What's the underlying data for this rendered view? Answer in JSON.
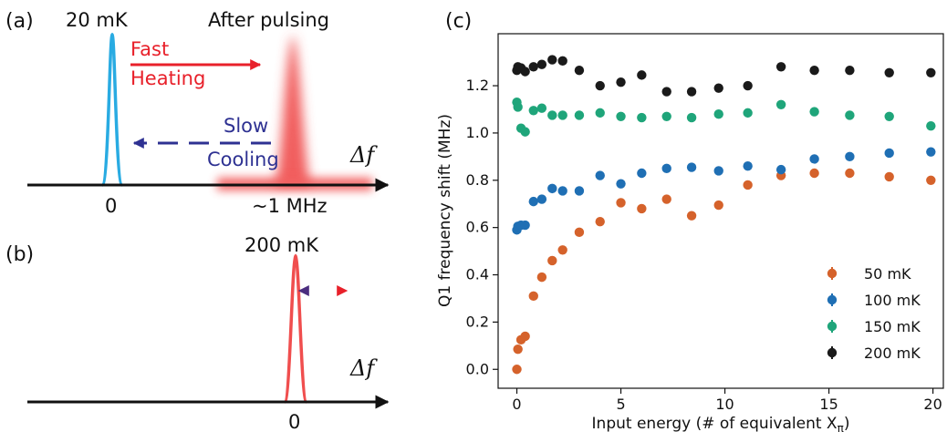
{
  "panels": {
    "a": {
      "label": "(a)",
      "cold_peak_label": "20 mK",
      "hot_peak_label": "After pulsing",
      "heating_label_1": "Fast",
      "heating_label_2": "Heating",
      "cooling_label_1": "Slow",
      "cooling_label_2": "Cooling",
      "axis_symbol": "Δf",
      "tick_zero": "0",
      "tick_hot": "~1 MHz",
      "colors": {
        "cold_peak": "#29abe2",
        "hot_peak": "#f04e4e",
        "heating_arrow": "#e8202a",
        "cooling_arrow": "#2e3192"
      }
    },
    "b": {
      "label": "(b)",
      "peak_label": "200 mK",
      "axis_symbol": "Δf",
      "tick_zero": "0",
      "colors": {
        "peak": "#f04e4e",
        "arrow_start": "#4b2d7f",
        "arrow_end": "#e8202a"
      }
    },
    "c": {
      "label": "(c)"
    }
  },
  "chart_data": {
    "type": "scatter",
    "xlabel": "Input energy (# of equivalent X",
    "xlabel_sub": "π",
    "xlabel_close": ")",
    "ylabel": "Q1 frequency shift (MHz)",
    "xlim": [
      -0.9,
      20.5
    ],
    "ylim": [
      -0.08,
      1.42
    ],
    "xticks": [
      0,
      5,
      10,
      15,
      20
    ],
    "yticks": [
      0.0,
      0.2,
      0.4,
      0.6,
      0.8,
      1.0,
      1.2
    ],
    "ytick_labels": [
      "0.0",
      "0.2",
      "0.4",
      "0.6",
      "0.8",
      "1.0",
      "1.2"
    ],
    "grid": false,
    "legend_position": "lower-right",
    "series": [
      {
        "name": "50 mK",
        "color": "#d5622b",
        "points": [
          [
            0.0,
            0.0
          ],
          [
            0.05,
            0.085
          ],
          [
            0.2,
            0.125
          ],
          [
            0.4,
            0.14
          ],
          [
            0.8,
            0.31
          ],
          [
            1.2,
            0.39
          ],
          [
            1.7,
            0.46
          ],
          [
            2.2,
            0.505
          ],
          [
            3.0,
            0.58
          ],
          [
            4.0,
            0.625
          ],
          [
            5.0,
            0.705
          ],
          [
            6.0,
            0.68
          ],
          [
            7.2,
            0.72
          ],
          [
            8.4,
            0.65
          ],
          [
            9.7,
            0.695
          ],
          [
            11.1,
            0.78
          ],
          [
            12.7,
            0.82
          ],
          [
            14.3,
            0.83
          ],
          [
            16.0,
            0.83
          ],
          [
            17.9,
            0.815
          ],
          [
            19.9,
            0.8
          ]
        ]
      },
      {
        "name": "100 mK",
        "color": "#1f6fb4",
        "points": [
          [
            0.0,
            0.59
          ],
          [
            0.05,
            0.605
          ],
          [
            0.2,
            0.61
          ],
          [
            0.4,
            0.61
          ],
          [
            0.8,
            0.71
          ],
          [
            1.2,
            0.72
          ],
          [
            1.7,
            0.765
          ],
          [
            2.2,
            0.755
          ],
          [
            3.0,
            0.755
          ],
          [
            4.0,
            0.82
          ],
          [
            5.0,
            0.785
          ],
          [
            6.0,
            0.83
          ],
          [
            7.2,
            0.85
          ],
          [
            8.4,
            0.855
          ],
          [
            9.7,
            0.84
          ],
          [
            11.1,
            0.86
          ],
          [
            12.7,
            0.845
          ],
          [
            14.3,
            0.89
          ],
          [
            16.0,
            0.9
          ],
          [
            17.9,
            0.915
          ],
          [
            19.9,
            0.92
          ]
        ]
      },
      {
        "name": "150 mK",
        "color": "#1fa57a",
        "points": [
          [
            0.0,
            1.13
          ],
          [
            0.05,
            1.11
          ],
          [
            0.2,
            1.02
          ],
          [
            0.4,
            1.005
          ],
          [
            0.8,
            1.095
          ],
          [
            1.2,
            1.105
          ],
          [
            1.7,
            1.075
          ],
          [
            2.2,
            1.075
          ],
          [
            3.0,
            1.075
          ],
          [
            4.0,
            1.085
          ],
          [
            5.0,
            1.07
          ],
          [
            6.0,
            1.065
          ],
          [
            7.2,
            1.07
          ],
          [
            8.4,
            1.065
          ],
          [
            9.7,
            1.08
          ],
          [
            11.1,
            1.085
          ],
          [
            12.7,
            1.12
          ],
          [
            14.3,
            1.09
          ],
          [
            16.0,
            1.075
          ],
          [
            17.9,
            1.07
          ],
          [
            19.9,
            1.03
          ]
        ]
      },
      {
        "name": "200 mK",
        "color": "#1a1a1a",
        "points": [
          [
            0.0,
            1.265
          ],
          [
            0.05,
            1.28
          ],
          [
            0.2,
            1.275
          ],
          [
            0.4,
            1.26
          ],
          [
            0.8,
            1.28
          ],
          [
            1.2,
            1.29
          ],
          [
            1.7,
            1.31
          ],
          [
            2.2,
            1.305
          ],
          [
            3.0,
            1.265
          ],
          [
            4.0,
            1.2
          ],
          [
            5.0,
            1.215
          ],
          [
            6.0,
            1.245
          ],
          [
            7.2,
            1.175
          ],
          [
            8.4,
            1.175
          ],
          [
            9.7,
            1.19
          ],
          [
            11.1,
            1.2
          ],
          [
            12.7,
            1.28
          ],
          [
            14.3,
            1.265
          ],
          [
            16.0,
            1.265
          ],
          [
            17.9,
            1.255
          ],
          [
            19.9,
            1.255
          ]
        ]
      }
    ]
  }
}
